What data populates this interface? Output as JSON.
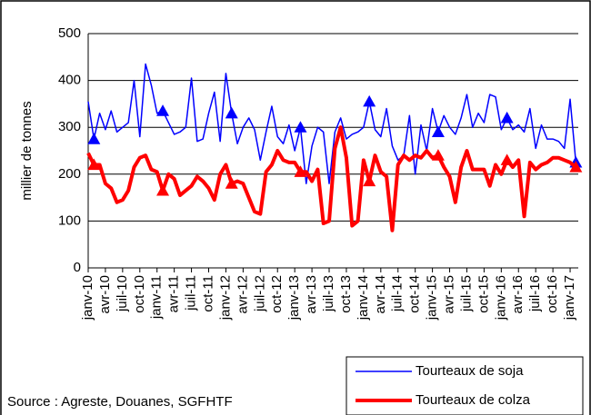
{
  "chart_data": {
    "type": "line",
    "ylabel": "millier de tonnes",
    "source": "Source : Agreste, Douanes, SGFHTF",
    "categories": [
      "janv-10",
      null,
      null,
      "avr-10",
      null,
      null,
      "juil-10",
      null,
      null,
      "oct-10",
      null,
      null,
      "janv-11",
      null,
      null,
      "avr-11",
      null,
      null,
      "juil-11",
      null,
      null,
      "oct-11",
      null,
      null,
      "janv-12",
      null,
      null,
      "avr-12",
      null,
      null,
      "juil-12",
      null,
      null,
      "oct-12",
      null,
      null,
      "janv-13",
      null,
      null,
      "avr-13",
      null,
      null,
      "juil-13",
      null,
      null,
      "oct-13",
      null,
      null,
      "janv-14",
      null,
      null,
      "avr-14",
      null,
      null,
      "juil-14",
      null,
      null,
      "oct-14",
      null,
      null,
      "janv-15",
      null,
      null,
      "avr-15",
      null,
      null,
      "juil-15",
      null,
      null,
      "oct-15",
      null,
      null,
      "janv-16",
      null,
      null,
      "avr-16",
      null,
      null,
      "juil-16",
      null,
      null,
      "oct-16",
      null,
      null,
      "janv-17",
      null
    ],
    "series": [
      {
        "name": "Tourteaux de soja",
        "color": "#0000ff",
        "width": 1.5,
        "marker": "triangle",
        "values": [
          355,
          275,
          330,
          295,
          335,
          290,
          300,
          310,
          400,
          280,
          435,
          390,
          330,
          335,
          310,
          285,
          290,
          300,
          405,
          270,
          275,
          330,
          375,
          270,
          415,
          330,
          265,
          300,
          320,
          295,
          230,
          290,
          345,
          280,
          265,
          305,
          250,
          300,
          180,
          260,
          300,
          290,
          180,
          290,
          320,
          275,
          285,
          290,
          300,
          355,
          295,
          280,
          340,
          260,
          230,
          240,
          325,
          200,
          305,
          250,
          340,
          290,
          325,
          300,
          285,
          320,
          370,
          300,
          330,
          310,
          370,
          365,
          295,
          320,
          295,
          305,
          290,
          340,
          255,
          305,
          275,
          275,
          270,
          255,
          360,
          225
        ]
      },
      {
        "name": "Tourteaux de colza",
        "color": "#ff0000",
        "width": 4,
        "marker": "triangle",
        "values": [
          245,
          220,
          220,
          180,
          170,
          140,
          145,
          165,
          215,
          235,
          240,
          210,
          205,
          165,
          200,
          190,
          155,
          165,
          175,
          195,
          185,
          170,
          145,
          200,
          220,
          180,
          185,
          180,
          150,
          120,
          115,
          205,
          220,
          250,
          230,
          225,
          225,
          205,
          205,
          185,
          210,
          95,
          100,
          255,
          300,
          235,
          90,
          100,
          230,
          185,
          240,
          205,
          195,
          80,
          220,
          240,
          230,
          240,
          235,
          250,
          235,
          240,
          215,
          195,
          140,
          215,
          250,
          210,
          210,
          210,
          175,
          220,
          200,
          230,
          215,
          230,
          110,
          225,
          210,
          220,
          225,
          235,
          235,
          230,
          225,
          215
        ]
      }
    ],
    "ylim": [
      0,
      500
    ],
    "yticks": [
      0,
      100,
      200,
      300,
      400,
      500
    ],
    "grid": true,
    "legend": "lower right"
  }
}
